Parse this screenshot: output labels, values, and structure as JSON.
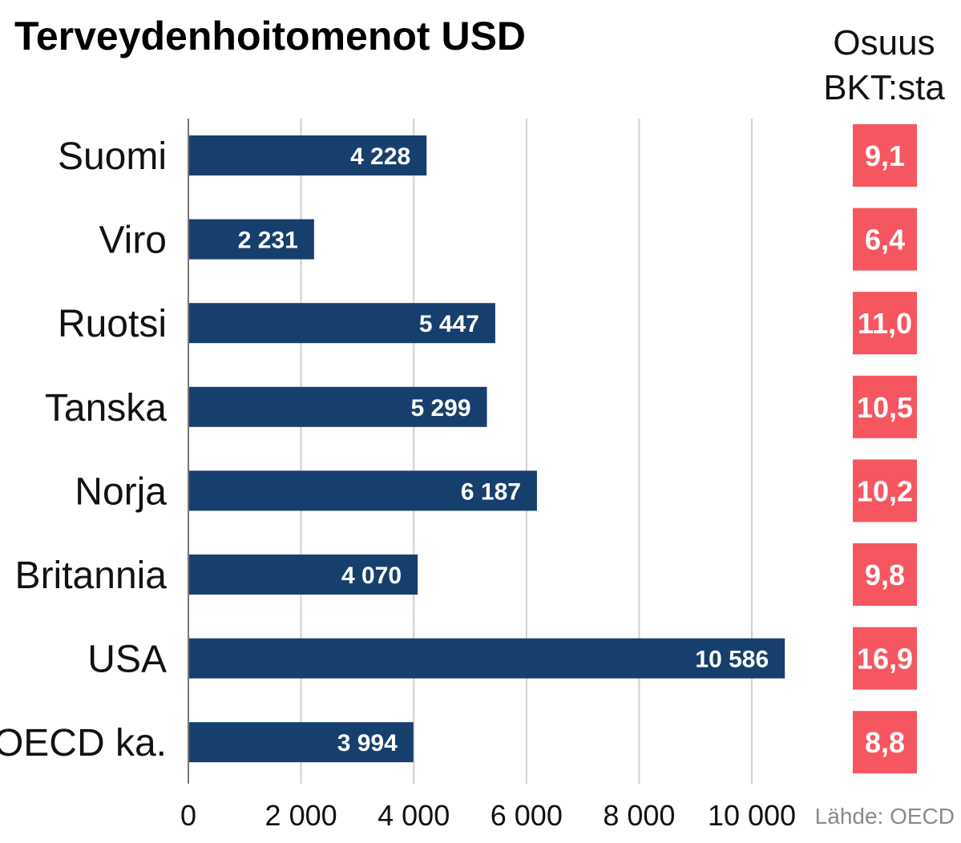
{
  "chart_data": {
    "type": "bar",
    "orientation": "horizontal",
    "title": "Terveydenhoitomenot USD",
    "categories": [
      "Suomi",
      "Viro",
      "Ruotsi",
      "Tanska",
      "Norja",
      "Britannia",
      "USA",
      "OECD ka."
    ],
    "values": [
      4228,
      2231,
      5447,
      5299,
      6187,
      4070,
      10586,
      3994
    ],
    "value_labels": [
      "4 228",
      "2 231",
      "5 447",
      "5 299",
      "6 187",
      "4 070",
      "10 586",
      "3 994"
    ],
    "xlim": [
      0,
      10000
    ],
    "xticks": [
      0,
      2000,
      4000,
      6000,
      8000,
      10000
    ],
    "xtick_labels": [
      "0",
      "2 000",
      "4 000",
      "6 000",
      "8 000",
      "10 000"
    ],
    "grid": "vertical",
    "share_header": [
      "Osuus",
      "BKT:sta"
    ],
    "share_values": [
      "9,1",
      "6,4",
      "11,0",
      "10,5",
      "10,2",
      "9,8",
      "16,9",
      "8,8"
    ],
    "source": "Lähde: OECD",
    "colors": {
      "bar": "#173f6d",
      "share_box": "#f55660",
      "grid": "#cfcfcf",
      "axis": "#777777"
    }
  }
}
